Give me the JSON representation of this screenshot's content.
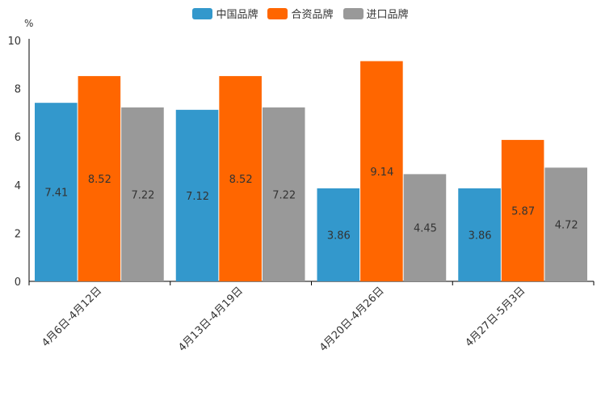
{
  "chart_data": {
    "type": "bar",
    "title": "",
    "xlabel": "",
    "ylabel": "%",
    "ylim": [
      0,
      10
    ],
    "yticks": [
      "0",
      "2",
      "4",
      "6",
      "8",
      "10"
    ],
    "categories": [
      "4月6日-4月12日",
      "4月13日-4月19日",
      "4月20日-4月26日",
      "4月27日-5月3日"
    ],
    "series": [
      {
        "name": "中国品牌",
        "color": "#3398CC",
        "values": [
          7.41,
          7.12,
          3.86,
          3.86
        ],
        "labels": [
          "7.41",
          "7.12",
          "3.86",
          "3.86"
        ]
      },
      {
        "name": "合资品牌",
        "color": "#FF6600",
        "values": [
          8.52,
          8.52,
          9.14,
          5.87
        ],
        "labels": [
          "8.52",
          "8.52",
          "9.14",
          "5.87"
        ]
      },
      {
        "name": "进口品牌",
        "color": "#999999",
        "values": [
          7.22,
          7.22,
          4.45,
          4.72
        ],
        "labels": [
          "7.22",
          "7.22",
          "4.45",
          "4.72"
        ]
      }
    ],
    "legend_position": "top-center",
    "grid": false
  }
}
